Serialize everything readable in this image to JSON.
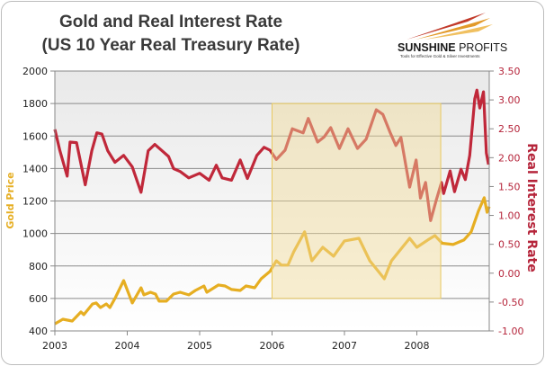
{
  "chart_data": {
    "type": "line",
    "title": "Gold and Real Interest Rate",
    "subtitle": "(US 10 Year Real Treasury Rate)",
    "xlabel": "",
    "ylabel": "Gold Price",
    "y2label": "Real Interest Rate",
    "xlim": [
      2003,
      2009
    ],
    "ylim": [
      400,
      2000
    ],
    "y2lim": [
      -1.0,
      3.5
    ],
    "x_ticks": [
      "2003",
      "2004",
      "2005",
      "2006",
      "2007",
      "2008"
    ],
    "y_ticks": [
      "400",
      "600",
      "800",
      "1000",
      "1200",
      "1400",
      "1600",
      "1800",
      "2000"
    ],
    "y2_ticks": [
      "-1.00",
      "-0.50",
      "0.00",
      "0.50",
      "1.00",
      "1.50",
      "2.00",
      "2.50",
      "3.00",
      "3.50"
    ],
    "grid": true,
    "highlight_region": {
      "x": [
        2006.0,
        2008.33
      ],
      "y": [
        600,
        1800
      ],
      "color": "#f2dc9a"
    },
    "series": [
      {
        "axis": "left",
        "color": "#e6ae22",
        "x": [
          2003.0,
          2003.11,
          2003.24,
          2003.36,
          2003.4,
          2003.52,
          2003.57,
          2003.63,
          2003.71,
          2003.76,
          2003.83,
          2003.95,
          2004.07,
          2004.19,
          2004.23,
          2004.32,
          2004.39,
          2004.44,
          2004.54,
          2004.64,
          2004.73,
          2004.85,
          2004.94,
          2005.06,
          2005.1,
          2005.26,
          2005.35,
          2005.44,
          2005.56,
          2005.64,
          2005.76,
          2005.85,
          2005.97,
          2006.06,
          2006.13,
          2006.22,
          2006.3,
          2006.45,
          2006.55,
          2006.7,
          2006.85,
          2007.0,
          2007.2,
          2007.35,
          2007.45,
          2007.55,
          2007.65,
          2007.8,
          2007.9,
          2008.0,
          2008.15,
          2008.25,
          2008.35,
          2008.5,
          2008.65,
          2008.75,
          2008.85,
          2008.93,
          2008.97,
          2009.0
        ],
        "y": [
          444,
          472,
          461,
          517,
          500,
          566,
          572,
          544,
          566,
          544,
          600,
          710,
          572,
          666,
          622,
          638,
          627,
          583,
          583,
          627,
          638,
          622,
          649,
          677,
          638,
          683,
          677,
          655,
          649,
          677,
          666,
          721,
          766,
          832,
          805,
          805,
          887,
          1010,
          832,
          915,
          860,
          954,
          970,
          832,
          777,
          721,
          832,
          915,
          970,
          915,
          960,
          987,
          940,
          932,
          960,
          1010,
          1137,
          1220,
          1130,
          1165
        ]
      },
      {
        "axis": "right",
        "color": "#c0283a",
        "x": [
          2003.0,
          2003.07,
          2003.17,
          2003.21,
          2003.3,
          2003.42,
          2003.51,
          2003.58,
          2003.65,
          2003.73,
          2003.83,
          2003.95,
          2004.07,
          2004.19,
          2004.29,
          2004.38,
          2004.48,
          2004.57,
          2004.64,
          2004.73,
          2004.85,
          2005.0,
          2005.13,
          2005.23,
          2005.31,
          2005.44,
          2005.56,
          2005.66,
          2005.79,
          2005.89,
          2005.97,
          2006.06,
          2006.18,
          2006.28,
          2006.43,
          2006.5,
          2006.63,
          2006.72,
          2006.81,
          2006.93,
          2007.05,
          2007.18,
          2007.3,
          2007.44,
          2007.53,
          2007.63,
          2007.71,
          2007.78,
          2007.9,
          2007.99,
          2008.05,
          2008.12,
          2008.19,
          2008.27,
          2008.34,
          2008.37,
          2008.46,
          2008.52,
          2008.61,
          2008.67,
          2008.73,
          2008.8,
          2008.83,
          2008.87,
          2008.92,
          2008.96,
          2008.99
        ],
        "y": [
          2.49,
          2.12,
          1.68,
          2.27,
          2.26,
          1.53,
          2.12,
          2.43,
          2.41,
          2.12,
          1.92,
          2.04,
          1.84,
          1.4,
          2.12,
          2.23,
          2.12,
          2.02,
          1.81,
          1.76,
          1.65,
          1.73,
          1.61,
          1.87,
          1.65,
          1.61,
          1.96,
          1.64,
          2.04,
          2.18,
          2.13,
          1.97,
          2.13,
          2.5,
          2.43,
          2.68,
          2.27,
          2.36,
          2.52,
          2.16,
          2.5,
          2.16,
          2.32,
          2.83,
          2.75,
          2.44,
          2.21,
          2.35,
          1.49,
          1.96,
          1.3,
          1.57,
          0.91,
          1.27,
          1.57,
          1.38,
          1.77,
          1.41,
          1.8,
          1.62,
          2.04,
          3.02,
          3.17,
          2.86,
          3.14,
          2.08,
          1.88
        ]
      }
    ]
  },
  "logo": {
    "name": "SUNSHINE PROFITS",
    "tagline": "Tools for Effective Gold & Silver Investments"
  }
}
